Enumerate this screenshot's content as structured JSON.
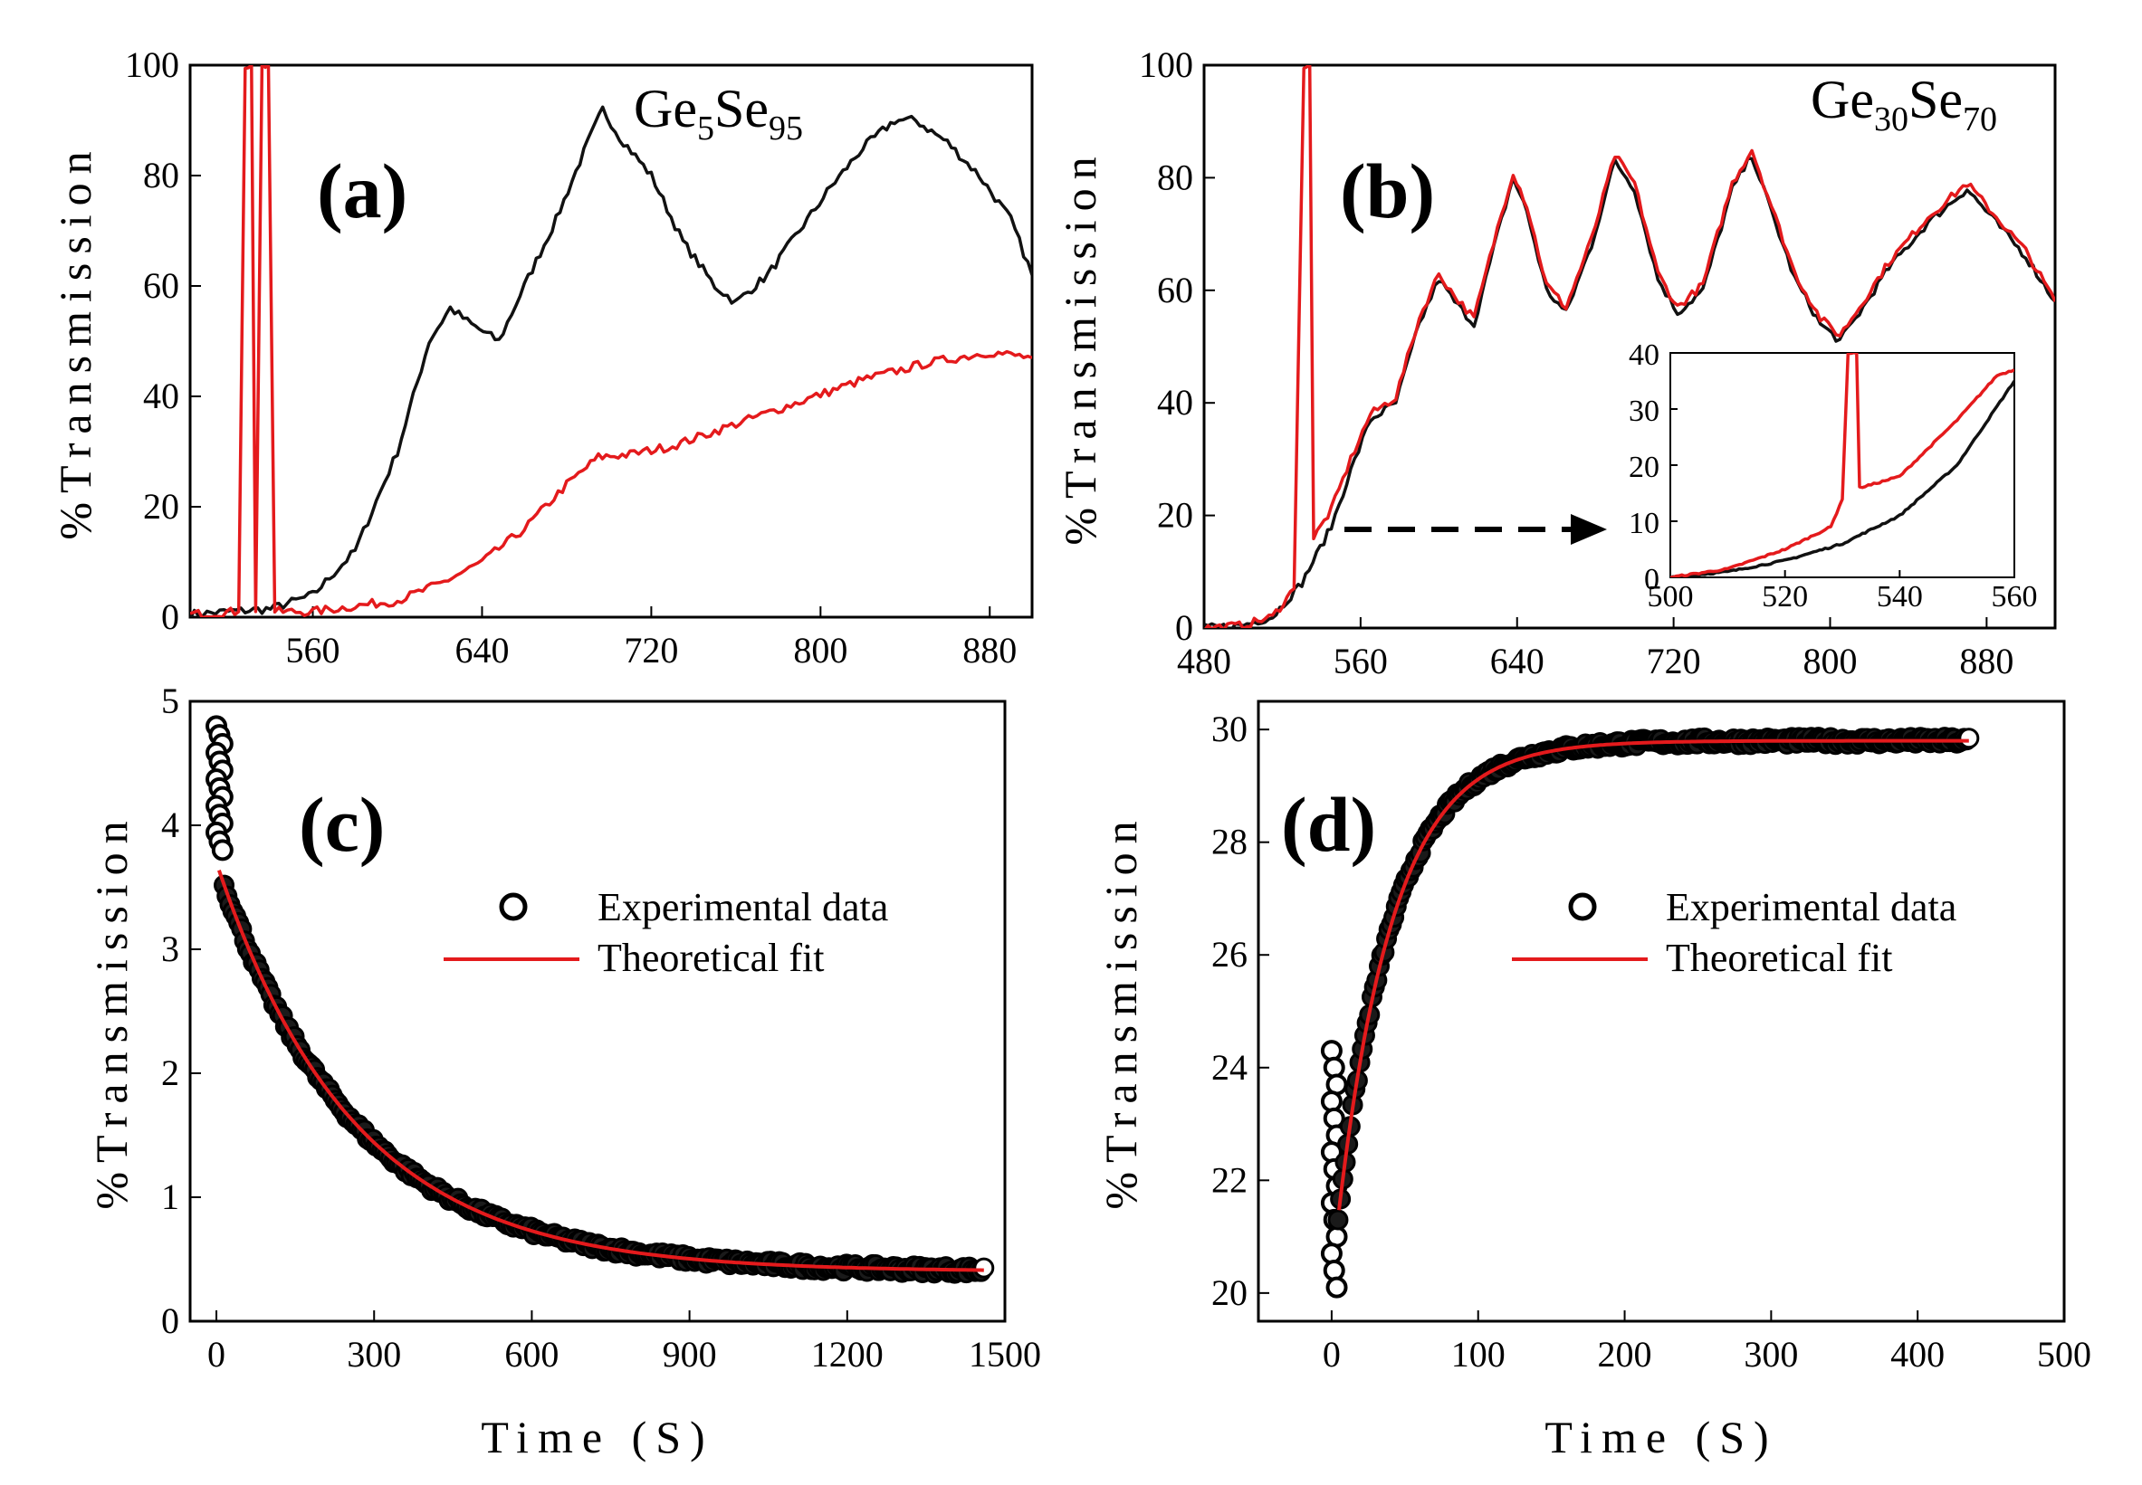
{
  "colors": {
    "black": "#111111",
    "red": "#e41a1c",
    "background": "#ffffff"
  },
  "chart_data": [
    {
      "id": "a",
      "type": "line",
      "panel_label": "(a)",
      "annotation": {
        "base": "Ge",
        "sub1": "5",
        "mid": "Se",
        "sub2": "95"
      },
      "ylabel": "%Transmission",
      "xlabel": "",
      "xlim": [
        502,
        900
      ],
      "ylim": [
        0,
        100
      ],
      "xticks": [
        560,
        640,
        720,
        800,
        880
      ],
      "yticks": [
        0,
        20,
        40,
        60,
        80,
        100
      ],
      "series": [
        {
          "name": "black",
          "color": "#111111",
          "points": [
            [
              502,
              0.5
            ],
            [
              520,
              1
            ],
            [
              540,
              1.5
            ],
            [
              560,
              4
            ],
            [
              580,
              12
            ],
            [
              600,
              30
            ],
            [
              615,
              50
            ],
            [
              625,
              56
            ],
            [
              635,
              53
            ],
            [
              648,
              50
            ],
            [
              660,
              60
            ],
            [
              675,
              72
            ],
            [
              690,
              86
            ],
            [
              697,
              92
            ],
            [
              705,
              87
            ],
            [
              720,
              80
            ],
            [
              735,
              68
            ],
            [
              750,
              60
            ],
            [
              760,
              57
            ],
            [
              775,
              62
            ],
            [
              790,
              70
            ],
            [
              805,
              78
            ],
            [
              820,
              85
            ],
            [
              835,
              90
            ],
            [
              845,
              90
            ],
            [
              860,
              86
            ],
            [
              875,
              80
            ],
            [
              890,
              72
            ],
            [
              900,
              62
            ]
          ]
        },
        {
          "name": "red",
          "color": "#e41a1c",
          "points": [
            [
              502,
              0.5
            ],
            [
              525,
              1
            ],
            [
              528,
              100
            ],
            [
              531,
              100
            ],
            [
              533,
              1
            ],
            [
              536,
              100
            ],
            [
              539,
              100
            ],
            [
              542,
              1
            ],
            [
              560,
              1
            ],
            [
              580,
              2
            ],
            [
              600,
              3
            ],
            [
              620,
              6
            ],
            [
              640,
              10
            ],
            [
              660,
              16
            ],
            [
              680,
              24
            ],
            [
              695,
              29
            ],
            [
              710,
              29.5
            ],
            [
              730,
              31
            ],
            [
              760,
              35
            ],
            [
              790,
              39
            ],
            [
              820,
              43
            ],
            [
              850,
              46
            ],
            [
              880,
              48
            ],
            [
              900,
              47
            ]
          ]
        }
      ]
    },
    {
      "id": "b",
      "type": "line",
      "panel_label": "(b)",
      "annotation": {
        "base": "Ge",
        "sub1": "30",
        "mid": "Se",
        "sub2": "70"
      },
      "ylabel": "%Transmission",
      "xlabel": "",
      "xlim": [
        480,
        915
      ],
      "ylim": [
        0,
        100
      ],
      "xticks": [
        480,
        560,
        640,
        720,
        800,
        880
      ],
      "yticks": [
        0,
        20,
        40,
        60,
        80,
        100
      ],
      "series": [
        {
          "name": "black",
          "color": "#111111",
          "points": [
            [
              480,
              0
            ],
            [
              500,
              0.5
            ],
            [
              515,
              2
            ],
            [
              530,
              8
            ],
            [
              545,
              18
            ],
            [
              555,
              28
            ],
            [
              565,
              37
            ],
            [
              578,
              40
            ],
            [
              590,
              54
            ],
            [
              600,
              62
            ],
            [
              608,
              58
            ],
            [
              618,
              54
            ],
            [
              630,
              70
            ],
            [
              638,
              80
            ],
            [
              645,
              74
            ],
            [
              655,
              60
            ],
            [
              665,
              56
            ],
            [
              678,
              68
            ],
            [
              690,
              83
            ],
            [
              700,
              78
            ],
            [
              712,
              62
            ],
            [
              722,
              56
            ],
            [
              735,
              60
            ],
            [
              750,
              78
            ],
            [
              760,
              84
            ],
            [
              770,
              74
            ],
            [
              782,
              62
            ],
            [
              795,
              54
            ],
            [
              805,
              51
            ],
            [
              815,
              56
            ],
            [
              830,
              64
            ],
            [
              850,
              72
            ],
            [
              870,
              78
            ],
            [
              885,
              72
            ],
            [
              900,
              66
            ],
            [
              915,
              58
            ]
          ]
        },
        {
          "name": "red",
          "color": "#e41a1c",
          "points": [
            [
              480,
              0
            ],
            [
              500,
              0.5
            ],
            [
              515,
              2
            ],
            [
              526,
              7
            ],
            [
              531,
              100
            ],
            [
              534,
              100
            ],
            [
              536,
              16
            ],
            [
              545,
              21
            ],
            [
              555,
              30
            ],
            [
              565,
              38
            ],
            [
              578,
              41
            ],
            [
              590,
              55
            ],
            [
              600,
              63
            ],
            [
              608,
              59
            ],
            [
              618,
              55
            ],
            [
              630,
              71
            ],
            [
              638,
              81
            ],
            [
              645,
              75
            ],
            [
              655,
              61
            ],
            [
              665,
              57
            ],
            [
              678,
              69
            ],
            [
              690,
              84
            ],
            [
              700,
              79
            ],
            [
              712,
              63
            ],
            [
              722,
              57
            ],
            [
              735,
              61
            ],
            [
              750,
              79
            ],
            [
              760,
              85
            ],
            [
              770,
              75
            ],
            [
              782,
              63
            ],
            [
              795,
              55
            ],
            [
              805,
              52
            ],
            [
              815,
              57
            ],
            [
              830,
              65
            ],
            [
              850,
              73
            ],
            [
              870,
              79
            ],
            [
              885,
              73
            ],
            [
              900,
              67
            ],
            [
              915,
              58
            ]
          ]
        }
      ],
      "inset": {
        "xlim": [
          500,
          560
        ],
        "ylim": [
          0,
          40
        ],
        "xticks": [
          500,
          520,
          540,
          560
        ],
        "yticks": [
          0,
          10,
          20,
          30,
          40
        ],
        "series": [
          {
            "name": "black",
            "color": "#111111",
            "points": [
              [
                500,
                0
              ],
              [
                510,
                1
              ],
              [
                520,
                3
              ],
              [
                530,
                6
              ],
              [
                540,
                11
              ],
              [
                550,
                20
              ],
              [
                560,
                35
              ]
            ]
          },
          {
            "name": "red",
            "color": "#e41a1c",
            "points": [
              [
                500,
                0
              ],
              [
                510,
                1.5
              ],
              [
                520,
                5
              ],
              [
                528,
                9
              ],
              [
                530,
                14
              ],
              [
                531,
                40
              ],
              [
                532.5,
                40
              ],
              [
                533,
                16
              ],
              [
                535,
                16.5
              ],
              [
                540,
                18
              ],
              [
                550,
                28
              ],
              [
                557,
                36
              ],
              [
                560,
                37
              ]
            ]
          }
        ]
      }
    },
    {
      "id": "c",
      "type": "scatter",
      "panel_label": "(c)",
      "ylabel": "%Transmission",
      "xlabel": "Time (S)",
      "xlim": [
        -50,
        1500
      ],
      "ylim": [
        0,
        5
      ],
      "xticks": [
        0,
        300,
        600,
        900,
        1200,
        1500
      ],
      "yticks": [
        0,
        1,
        2,
        3,
        4,
        5
      ],
      "legend": {
        "position": "right",
        "entries": [
          "Experimental data",
          "Theoretical fit"
        ]
      },
      "experimental": {
        "t_start": 0,
        "t_end": 1460,
        "initial_spike": [
          4.8,
          3.8
        ],
        "offset": 0.4,
        "amplitude": 3.3,
        "tau": 260
      },
      "fit": {
        "offset": 0.4,
        "amplitude": 3.3,
        "tau": 260,
        "t_start": 5,
        "t_end": 1460
      }
    },
    {
      "id": "d",
      "type": "scatter",
      "panel_label": "(d)",
      "ylabel": "%Transmission",
      "xlabel": "Time (S)",
      "xlim": [
        -50,
        500
      ],
      "ylim": [
        19.5,
        30.5
      ],
      "xticks": [
        0,
        100,
        200,
        300,
        400,
        500
      ],
      "yticks": [
        20,
        22,
        24,
        26,
        28,
        30
      ],
      "legend": {
        "position": "right",
        "entries": [
          "Experimental data",
          "Theoretical fit"
        ]
      },
      "experimental": {
        "t_start": 0,
        "t_end": 435,
        "initial_spike": [
          24.3,
          20.1
        ],
        "offset": 29.8,
        "amplitude": 9.5,
        "tau": 38
      },
      "fit": {
        "offset": 29.8,
        "amplitude": 9.5,
        "tau": 38,
        "t_start": 5,
        "t_end": 435
      }
    }
  ]
}
